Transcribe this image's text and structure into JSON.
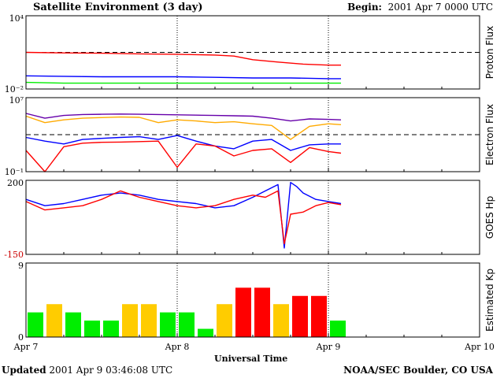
{
  "header": {
    "title": "Satellite Environment (3 day)",
    "begin_label": "Begin:",
    "begin_value": "2001 Apr 7 0000 UTC"
  },
  "footer": {
    "updated_label": "Updated",
    "updated_value": "2001 Apr  9 03:46:08 UTC",
    "source": "NOAA/SEC Boulder, CO USA"
  },
  "colors": {
    "red": "#ff0000",
    "blue": "#0000ff",
    "green": "#00ee00",
    "orange": "#ffaa00",
    "purple": "#6600aa",
    "yellow": "#ffcc00"
  },
  "chart_data": [
    {
      "type": "line",
      "ylabel": "Proton Flux",
      "y_scale": "log",
      "ylim": [
        0.01,
        10000
      ],
      "y_tick_labels": [
        {
          "value": 10000,
          "text": "10⁴"
        },
        {
          "value": 0.01,
          "text": "10⁻²"
        }
      ],
      "threshold": 10,
      "x_range_hours": [
        0,
        72
      ],
      "data_end_hour": 50,
      "series": [
        {
          "color": "red",
          "x": [
            0,
            6,
            12,
            18,
            24,
            30,
            33,
            36,
            40,
            44,
            48,
            50
          ],
          "y": [
            10,
            9,
            8.5,
            7.5,
            7,
            6,
            5,
            2.5,
            1.6,
            1.1,
            0.9,
            0.9
          ]
        },
        {
          "color": "blue",
          "x": [
            0,
            6,
            12,
            18,
            24,
            30,
            36,
            42,
            48,
            50
          ],
          "y": [
            0.12,
            0.11,
            0.1,
            0.1,
            0.1,
            0.09,
            0.08,
            0.08,
            0.07,
            0.07
          ]
        },
        {
          "color": "green",
          "x": [
            0,
            6,
            12,
            18,
            24,
            30,
            36,
            42,
            48,
            50
          ],
          "y": [
            0.035,
            0.03,
            0.03,
            0.03,
            0.03,
            0.03,
            0.03,
            0.03,
            0.03,
            0.03
          ]
        }
      ]
    },
    {
      "type": "line",
      "ylabel": "Electron Flux",
      "y_scale": "log",
      "ylim": [
        0.1,
        10000000
      ],
      "y_tick_labels": [
        {
          "value": 10000000,
          "text": "10⁷"
        },
        {
          "value": 0.1,
          "text": "10⁻¹"
        }
      ],
      "threshold": 1000,
      "x_range_hours": [
        0,
        72
      ],
      "data_end_hour": 50,
      "series": [
        {
          "color": "purple",
          "x": [
            0,
            3,
            6,
            9,
            12,
            15,
            18,
            21,
            24,
            27,
            30,
            33,
            36,
            39,
            42,
            45,
            48,
            50
          ],
          "y": [
            200000,
            60000,
            120000,
            150000,
            160000,
            170000,
            160000,
            150000,
            140000,
            130000,
            120000,
            110000,
            100000,
            60000,
            30000,
            50000,
            45000,
            40000
          ]
        },
        {
          "color": "orange",
          "x": [
            0,
            3,
            6,
            9,
            12,
            15,
            18,
            21,
            24,
            27,
            30,
            33,
            36,
            39,
            42,
            45,
            48,
            50
          ],
          "y": [
            100000,
            20000,
            40000,
            60000,
            70000,
            80000,
            75000,
            20000,
            40000,
            30000,
            20000,
            25000,
            15000,
            10000,
            300,
            8000,
            15000,
            12000
          ]
        },
        {
          "color": "blue",
          "x": [
            0,
            3,
            6,
            9,
            12,
            15,
            18,
            21,
            24,
            27,
            30,
            33,
            36,
            39,
            42,
            45,
            48,
            50
          ],
          "y": [
            500,
            200,
            100,
            300,
            400,
            500,
            600,
            300,
            800,
            200,
            60,
            30,
            200,
            300,
            20,
            80,
            100,
            100
          ]
        },
        {
          "color": "red",
          "x": [
            0,
            3,
            6,
            9,
            12,
            15,
            18,
            21,
            24,
            27,
            30,
            33,
            36,
            39,
            42,
            45,
            48,
            50
          ],
          "y": [
            20,
            0.1,
            50,
            120,
            150,
            160,
            180,
            200,
            0.3,
            100,
            60,
            5,
            20,
            30,
            1,
            40,
            15,
            10
          ]
        }
      ]
    },
    {
      "type": "line",
      "ylabel": "GOES Hp",
      "y_scale": "linear",
      "ylim": [
        -150,
        200
      ],
      "y_tick_labels": [
        {
          "value": 200,
          "text": "200"
        },
        {
          "value": -150,
          "text": "-150"
        }
      ],
      "x_range_hours": [
        0,
        72
      ],
      "data_end_hour": 50,
      "series": [
        {
          "color": "blue",
          "x": [
            0,
            3,
            6,
            9,
            12,
            15,
            18,
            21,
            24,
            27,
            30,
            33,
            36,
            38,
            40,
            41,
            42,
            43,
            44,
            46,
            48,
            50
          ],
          "y": [
            110,
            80,
            90,
            110,
            130,
            140,
            130,
            110,
            100,
            90,
            70,
            80,
            120,
            150,
            180,
            -120,
            190,
            170,
            140,
            110,
            100,
            90
          ]
        },
        {
          "color": "red",
          "x": [
            0,
            3,
            6,
            9,
            12,
            15,
            18,
            21,
            24,
            27,
            30,
            33,
            36,
            38,
            40,
            41,
            42,
            44,
            46,
            48,
            50
          ],
          "y": [
            100,
            60,
            70,
            80,
            110,
            150,
            120,
            100,
            80,
            70,
            80,
            110,
            130,
            120,
            150,
            -100,
            40,
            50,
            80,
            95,
            85
          ]
        }
      ]
    },
    {
      "type": "bar",
      "ylabel": "Estimated Kp",
      "ylim": [
        0,
        9
      ],
      "y_tick_labels": [
        {
          "value": 9,
          "text": "9"
        },
        {
          "value": 0,
          "text": "0"
        }
      ],
      "bar_width_hours": 3,
      "bar_start_hours": [
        0,
        3,
        6,
        9,
        12,
        15,
        18,
        21,
        24,
        27,
        30,
        33,
        36,
        39,
        42,
        45,
        48
      ],
      "values": [
        3,
        4,
        3,
        2,
        2,
        4,
        4,
        3,
        3,
        1,
        4,
        6,
        6,
        4,
        5,
        5,
        2
      ],
      "color_thresholds": "green < 4, yellow = 4, red >= 5"
    }
  ],
  "x_axis": {
    "title": "Universal Time",
    "tick_labels": [
      "Apr 7",
      "Apr 8",
      "Apr 9",
      "Apr 10"
    ],
    "tick_hours": [
      0,
      24,
      48,
      72
    ]
  }
}
